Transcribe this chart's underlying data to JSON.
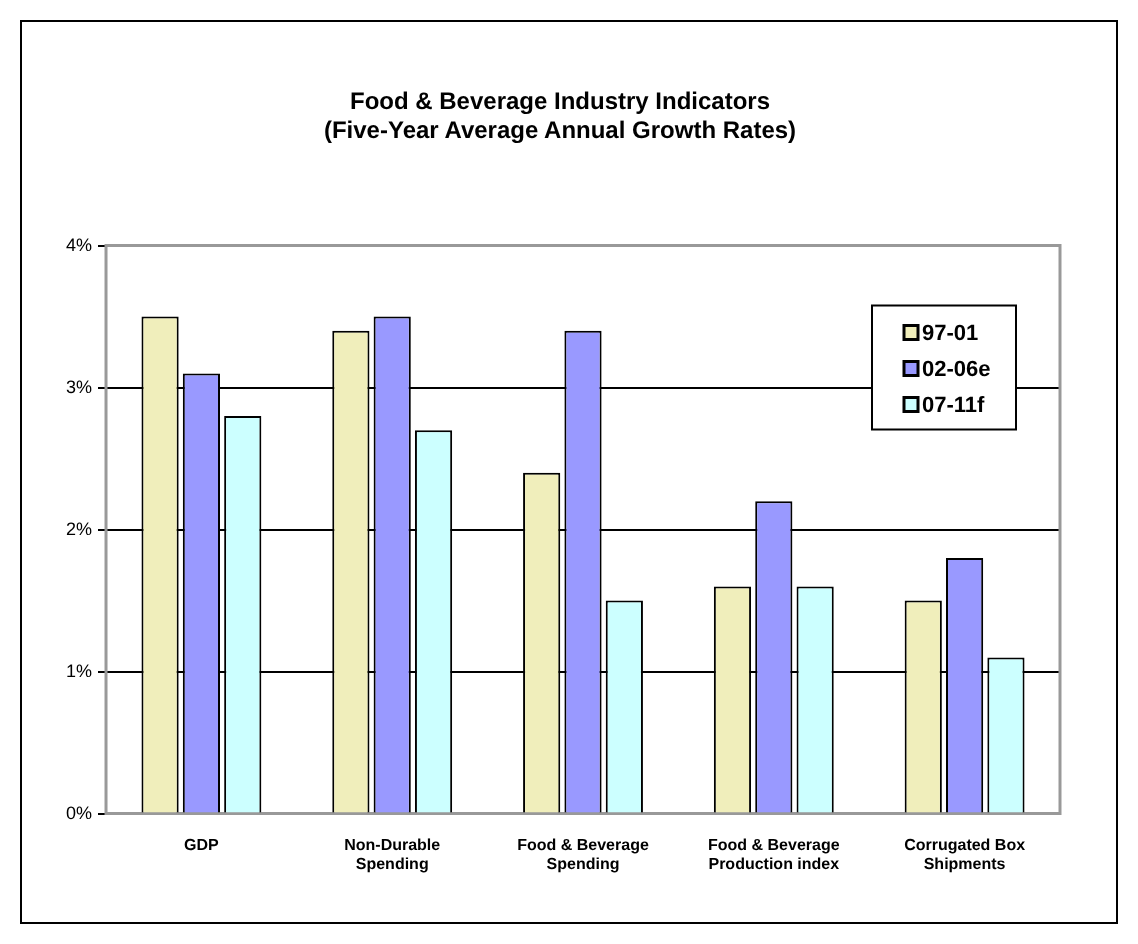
{
  "chart_data": {
    "type": "bar",
    "title": "Food & Beverage Industry Indicators\n(Five-Year Average Annual Growth Rates)",
    "categories": [
      "GDP",
      "Non-Durable Spending",
      "Food & Beverage Spending",
      "Food & Beverage Production index",
      "Corrugated Box Shipments"
    ],
    "series": [
      {
        "name": "97-01",
        "color": "#f0eebb",
        "values": [
          3.5,
          3.4,
          2.4,
          1.6,
          1.5
        ]
      },
      {
        "name": "02-06e",
        "color": "#9999ff",
        "values": [
          3.1,
          3.5,
          3.4,
          2.2,
          1.8
        ]
      },
      {
        "name": "07-11f",
        "color": "#ccffff",
        "values": [
          2.8,
          2.7,
          1.5,
          1.6,
          1.1
        ]
      }
    ],
    "ylim": [
      0,
      4
    ],
    "yticks": [
      {
        "value": 0,
        "label": "0%"
      },
      {
        "value": 1,
        "label": "1%"
      },
      {
        "value": 2,
        "label": "2%"
      },
      {
        "value": 3,
        "label": "3%"
      },
      {
        "value": 4,
        "label": "4%"
      }
    ],
    "grid": "y",
    "legend": "right"
  }
}
